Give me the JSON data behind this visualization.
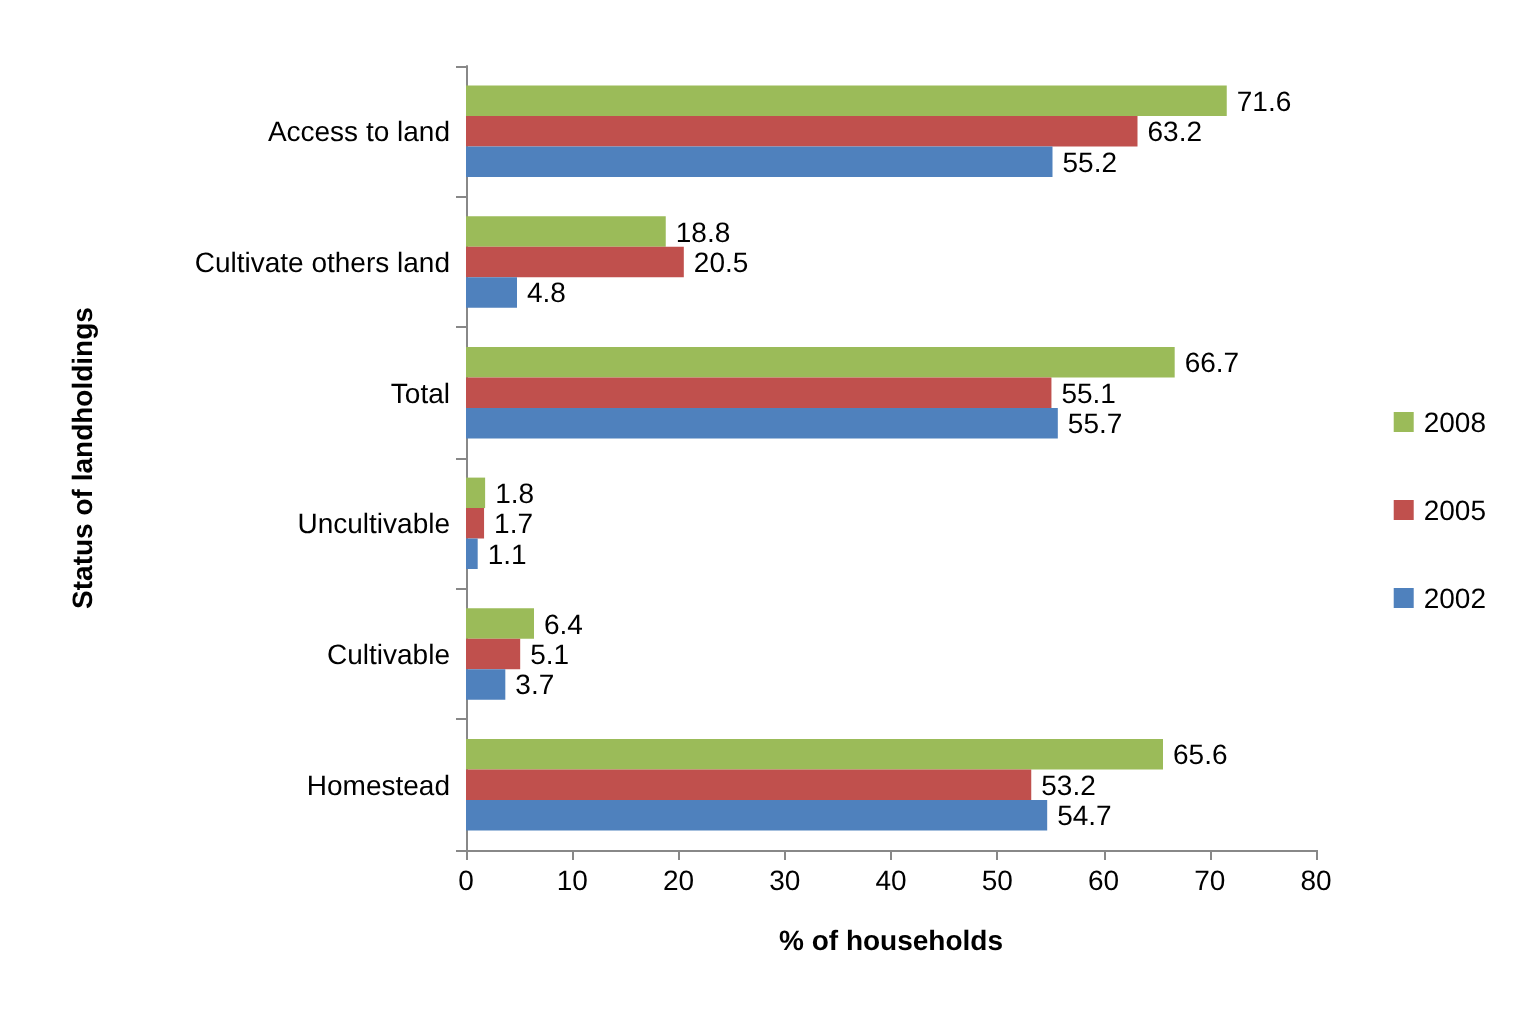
{
  "chart_data": {
    "type": "bar",
    "orientation": "horizontal",
    "xlabel": "% of households",
    "ylabel": "Status of landholdings",
    "categories": [
      "Access to land",
      "Cultivate others land",
      "Total",
      "Uncultivable",
      "Cultivable",
      "Homestead"
    ],
    "series": [
      {
        "name": "2008",
        "color": "#9bbb59",
        "values": [
          71.6,
          18.8,
          66.7,
          1.8,
          6.4,
          65.6
        ]
      },
      {
        "name": "2005",
        "color": "#c0504d",
        "values": [
          63.2,
          20.5,
          55.1,
          1.7,
          5.1,
          53.2
        ]
      },
      {
        "name": "2002",
        "color": "#4f81bd",
        "values": [
          55.2,
          4.8,
          55.7,
          1.1,
          3.7,
          54.7
        ]
      }
    ],
    "xlim": [
      0,
      80
    ],
    "xticks": [
      0,
      10,
      20,
      30,
      40,
      50,
      60,
      70,
      80
    ],
    "data_labels": true,
    "grid": false,
    "legend": "right"
  }
}
